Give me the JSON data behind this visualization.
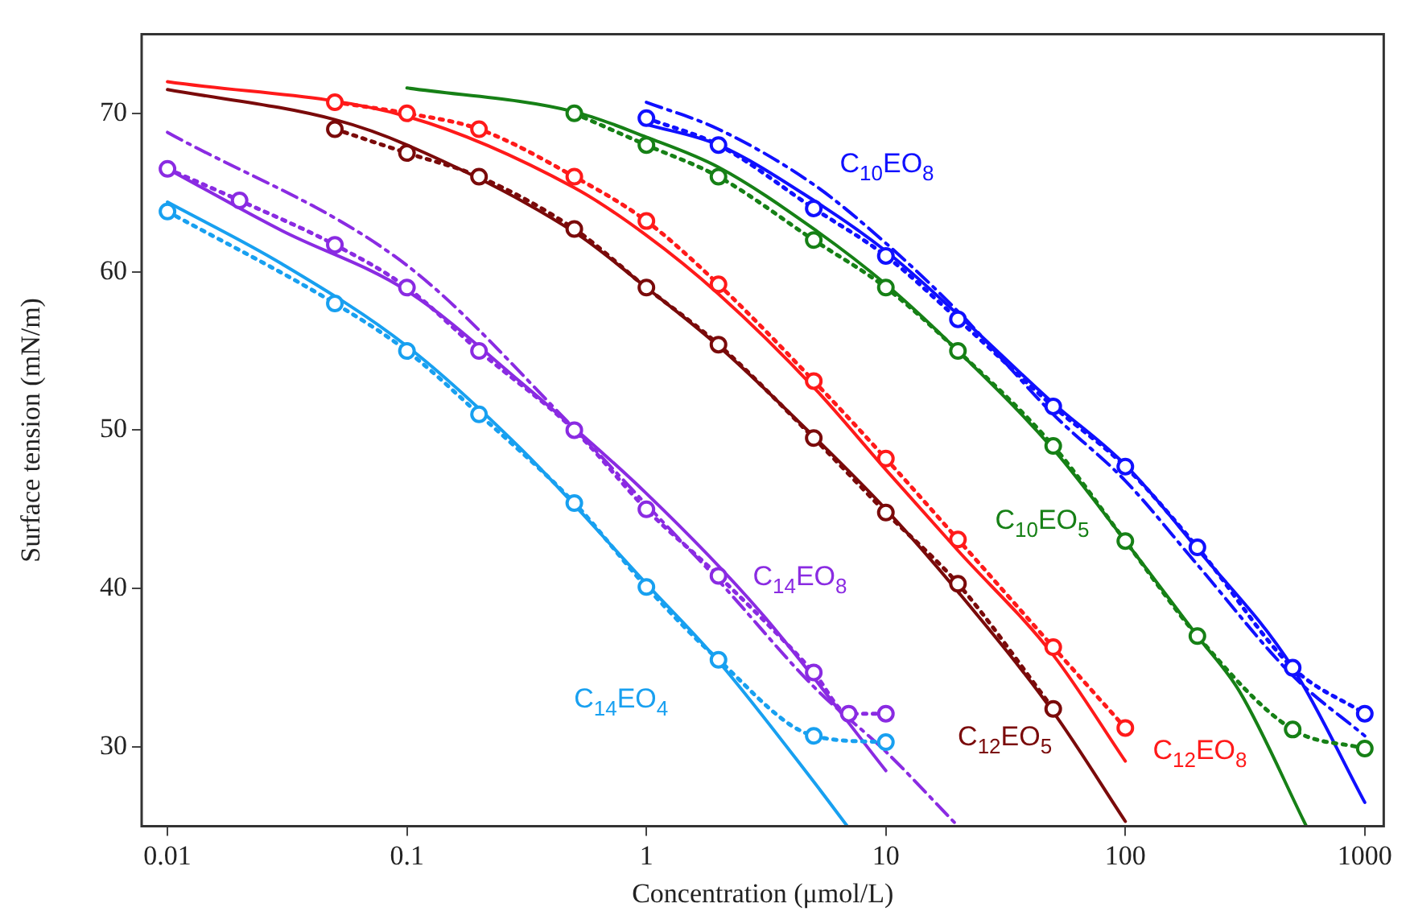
{
  "chart_data": {
    "type": "line",
    "xlabel": "Concentration (μmol/L)",
    "ylabel": "Surface tension (mN/m)",
    "log": "x",
    "xlim": [
      0.0078,
      1200
    ],
    "xticks": [
      0.01,
      0.1,
      1,
      10,
      100,
      1000
    ],
    "ylim": [
      25,
      75
    ],
    "yticks": [
      30,
      40,
      50,
      60,
      70
    ],
    "grid": false,
    "legend": false,
    "series": [
      {
        "name": "C$_{14}$EO$_{4}$",
        "color": "#18a0f0",
        "marker": "circle",
        "line_style": "dotted",
        "x": [
          0.01,
          0.05,
          0.1,
          0.2,
          0.5,
          1,
          2,
          5,
          10
        ],
        "values": [
          63.8,
          58,
          55,
          51,
          45.4,
          40.1,
          35.5,
          30.7,
          30.3
        ]
      },
      {
        "name": "C$_{14}$EO$_{8}$",
        "color": "#8a2be2",
        "marker": "circle",
        "line_style": "dotted",
        "x": [
          0.01,
          0.02,
          0.05,
          0.1,
          0.2,
          0.5,
          1,
          2,
          5,
          7,
          10
        ],
        "values": [
          66.5,
          64.5,
          61.7,
          59,
          55,
          50,
          45,
          40.8,
          34.7,
          32.1,
          32.1
        ]
      },
      {
        "name": "C$_{12}$EO$_{5}$",
        "color": "#7a0a0a",
        "marker": "circle",
        "line_style": "dotted",
        "x": [
          0.05,
          0.1,
          0.2,
          0.5,
          1,
          2,
          5,
          10,
          20,
          50
        ],
        "values": [
          69,
          67.5,
          66,
          62.7,
          59,
          55.4,
          49.5,
          44.8,
          40.3,
          32.4
        ]
      },
      {
        "name": "C$_{12}$EO$_{8}$",
        "color": "#ff1a1a",
        "marker": "circle",
        "line_style": "dotted",
        "x": [
          0.05,
          0.1,
          0.2,
          0.5,
          1,
          2,
          5,
          10,
          20,
          50,
          100
        ],
        "values": [
          70.7,
          70,
          69,
          66,
          63.2,
          59.2,
          53.1,
          48.2,
          43.1,
          36.3,
          31.2
        ]
      },
      {
        "name": "C$_{10}$EO$_{5}$",
        "color": "#168016",
        "marker": "circle",
        "line_style": "dotted",
        "x": [
          0.5,
          1,
          2,
          5,
          10,
          20,
          50,
          100,
          200,
          500,
          1000
        ],
        "values": [
          70,
          68,
          66,
          62,
          59,
          55,
          49,
          43,
          37,
          31.1,
          29.9
        ]
      },
      {
        "name": "C$_{10}$EO$_{8}$",
        "color": "#1010ff",
        "marker": "circle",
        "line_style": "dotted",
        "x": [
          1,
          2,
          5,
          10,
          20,
          50,
          100,
          200,
          500,
          1000
        ],
        "values": [
          69.7,
          68,
          64,
          61,
          57,
          51.5,
          47.7,
          42.6,
          35,
          32.1
        ]
      },
      {
        "color": "#18a0f0",
        "marker": "none",
        "line_style": "solid",
        "x": [
          0.01,
          0.03,
          0.1,
          0.3,
          1,
          2,
          5,
          6.9
        ],
        "values": [
          64.4,
          60.5,
          55.3,
          48.8,
          40.3,
          35.4,
          27.8,
          25
        ]
      },
      {
        "color": "#8a2be2",
        "marker": "none",
        "line_style": "solid",
        "x": [
          0.01,
          0.03,
          0.1,
          0.3,
          1,
          3,
          10
        ],
        "values": [
          66.5,
          62.6,
          58.8,
          53,
          46,
          38.5,
          28.5
        ]
      },
      {
        "color": "#7a0a0a",
        "marker": "none",
        "line_style": "solid",
        "x": [
          0.01,
          0.05,
          0.1,
          0.5,
          1,
          2,
          5,
          10,
          20,
          50,
          100
        ],
        "values": [
          71.5,
          69.6,
          68,
          62.5,
          59,
          55.3,
          49.6,
          45,
          39.8,
          32.2,
          25.3
        ]
      },
      {
        "color": "#ff1a1a",
        "marker": "none",
        "line_style": "solid",
        "x": [
          0.01,
          0.1,
          0.5,
          1,
          2,
          5,
          10,
          20,
          50,
          100
        ],
        "values": [
          72,
          69.8,
          65.3,
          62.3,
          58.6,
          52.7,
          47.5,
          42.4,
          35.8,
          29.1
        ]
      },
      {
        "color": "#168016",
        "marker": "none",
        "line_style": "solid",
        "x": [
          0.1,
          0.5,
          1,
          2,
          5,
          10,
          20,
          50,
          100,
          200,
          300,
          570
        ],
        "values": [
          71.6,
          70.1,
          68.5,
          66.6,
          62.7,
          59.2,
          55,
          48.8,
          43,
          37,
          33.5,
          25
        ]
      },
      {
        "color": "#1010ff",
        "marker": "none",
        "line_style": "solid",
        "x": [
          1,
          2,
          5,
          10,
          20,
          50,
          100,
          200,
          500,
          1000
        ],
        "values": [
          69.3,
          68,
          64.5,
          61.3,
          57.3,
          51.7,
          47.8,
          42.5,
          35,
          26.5
        ]
      },
      {
        "color": "#8a2be2",
        "marker": "none",
        "line_style": "dashed",
        "x": [
          0.01,
          0.1,
          0.5,
          1,
          2,
          5,
          10,
          20
        ],
        "values": [
          68.8,
          60.4,
          50.1,
          45.3,
          40.5,
          33.8,
          29.7,
          25
        ]
      },
      {
        "color": "#1010ff",
        "marker": "none",
        "line_style": "dashed",
        "x": [
          1,
          2,
          5,
          10,
          20,
          50,
          100,
          200,
          500,
          1000
        ],
        "values": [
          70.7,
          69,
          65.5,
          61.8,
          57.5,
          51,
          46.8,
          41.5,
          34.5,
          30.7
        ]
      }
    ]
  }
}
